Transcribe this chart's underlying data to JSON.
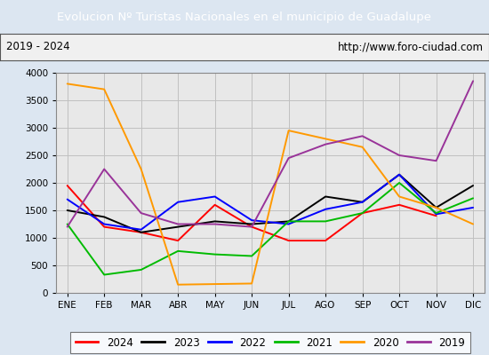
{
  "title": "Evolucion Nº Turistas Nacionales en el municipio de Guadalupe",
  "subtitle_left": "2019 - 2024",
  "subtitle_right": "http://www.foro-ciudad.com",
  "title_bg_color": "#4472c4",
  "title_text_color": "#ffffff",
  "plot_bg_color": "#e8e8e8",
  "outer_bg_color": "#dce6f1",
  "months": [
    "ENE",
    "FEB",
    "MAR",
    "ABR",
    "MAY",
    "JUN",
    "JUL",
    "AGO",
    "SEP",
    "OCT",
    "NOV",
    "DIC"
  ],
  "ylim": [
    0,
    4000
  ],
  "yticks": [
    0,
    500,
    1000,
    1500,
    2000,
    2500,
    3000,
    3500,
    4000
  ],
  "series": {
    "2024": {
      "color": "#ff0000",
      "data": [
        1950,
        1200,
        1100,
        950,
        1600,
        1200,
        950,
        950,
        1450,
        1600,
        1400,
        null
      ]
    },
    "2023": {
      "color": "#000000",
      "data": [
        1500,
        1380,
        1100,
        1200,
        1300,
        1250,
        1300,
        1750,
        1650,
        2150,
        1550,
        1950
      ]
    },
    "2022": {
      "color": "#0000ff",
      "data": [
        1700,
        1250,
        1150,
        1650,
        1750,
        1320,
        1250,
        1520,
        1650,
        2150,
        1430,
        1550
      ]
    },
    "2021": {
      "color": "#00bb00",
      "data": [
        1250,
        330,
        420,
        760,
        700,
        670,
        1300,
        1300,
        1450,
        2000,
        1450,
        1720
      ]
    },
    "2020": {
      "color": "#ff9900",
      "data": [
        3800,
        3700,
        2250,
        150,
        160,
        170,
        2950,
        2800,
        2650,
        1750,
        1550,
        1250
      ]
    },
    "2019": {
      "color": "#993399",
      "data": [
        1200,
        2250,
        1450,
        1250,
        1250,
        1200,
        2450,
        2700,
        2850,
        2500,
        2400,
        3850
      ]
    }
  },
  "legend_order": [
    "2024",
    "2023",
    "2022",
    "2021",
    "2020",
    "2019"
  ]
}
